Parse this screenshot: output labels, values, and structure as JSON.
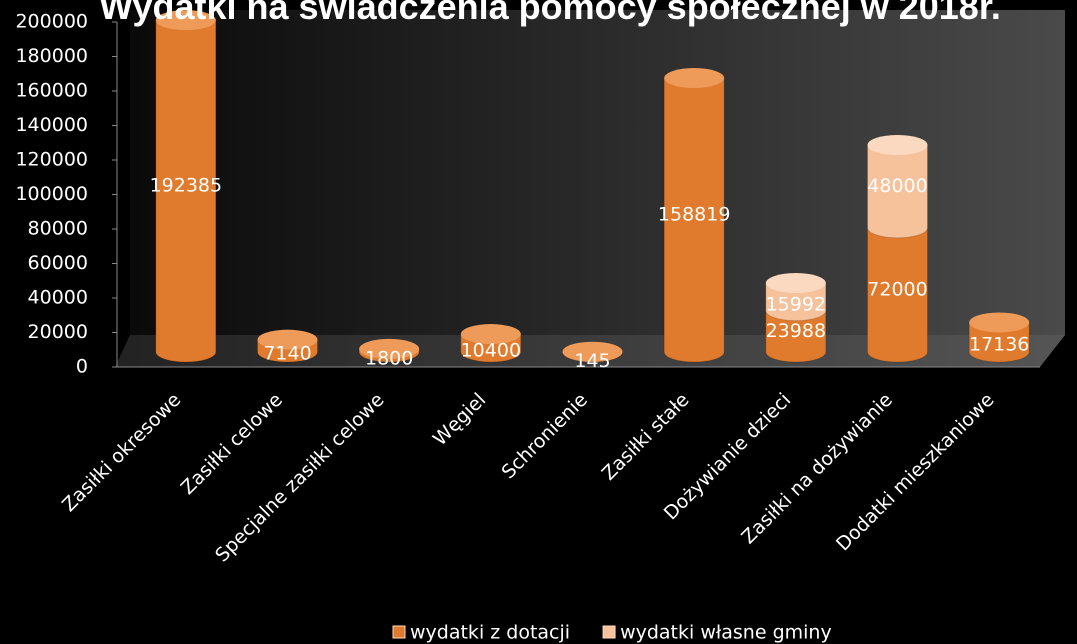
{
  "chart_data": {
    "type": "bar",
    "stacked": true,
    "title": "Wydatki na świadczenia pomocy społecznej w 2018r.",
    "categories": [
      "Zasiłki okresowe",
      "Zasiłki celowe",
      "Specjalne zasiłki celowe",
      "Węgiel",
      "Schronienie",
      "Zasiłki stałe",
      "Dożywianie dzieci",
      "Zasiłki na dożywianie",
      "Dodatki mieszkaniowe"
    ],
    "series": [
      {
        "name": "wydatki z dotacji",
        "color": "#e07a2c",
        "values": [
          192385,
          7140,
          1800,
          10400,
          145,
          158819,
          23988,
          72000,
          17136
        ]
      },
      {
        "name": "wydatki własne gminy",
        "color": "#f6c29c",
        "values": [
          null,
          null,
          null,
          null,
          null,
          null,
          15992,
          48000,
          null
        ]
      }
    ],
    "ylim": [
      0,
      200000
    ],
    "yticks": [
      0,
      20000,
      40000,
      60000,
      80000,
      100000,
      120000,
      140000,
      160000,
      180000,
      200000
    ]
  }
}
